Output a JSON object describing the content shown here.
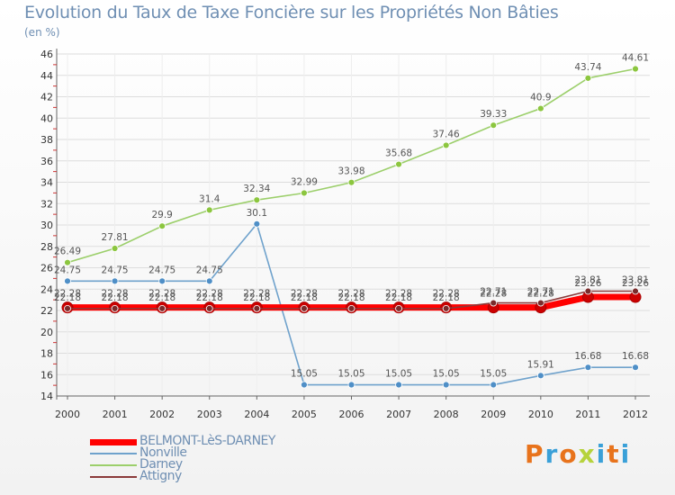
{
  "header": {
    "title": "Evolution du Taux de Taxe Foncière sur les Propriétés Non Bâties",
    "unit": "(en %)"
  },
  "logo": {
    "text": "Proxiti",
    "colors": [
      "#e8731c",
      "#3aa0d8",
      "#e8731c",
      "#b6d33c",
      "#3aa0d8",
      "#e8731c",
      "#3aa0d8"
    ]
  },
  "chart_data": {
    "type": "line",
    "title": "Evolution du Taux de Taxe Foncière sur les Propriétés Non Bâties",
    "ylabel": "(en %)",
    "xlabel": "",
    "x": [
      "2000",
      "2001",
      "2002",
      "2003",
      "2004",
      "2005",
      "2006",
      "2007",
      "2008",
      "2009",
      "2010",
      "2011",
      "2012"
    ],
    "ylim": [
      14,
      46
    ],
    "yticks": [
      14,
      16,
      18,
      20,
      22,
      24,
      26,
      28,
      30,
      32,
      34,
      36,
      38,
      40,
      42,
      44,
      46
    ],
    "grid": "horizontal",
    "legend_position": "bottom-left",
    "series": [
      {
        "name": "BELMONT-LèS-DARNEY",
        "color": "#ff0000",
        "values": [
          22.28,
          22.28,
          22.28,
          22.28,
          22.28,
          22.28,
          22.28,
          22.28,
          22.28,
          22.28,
          22.28,
          23.26,
          23.26
        ],
        "labels": [
          "22.28",
          "22.28",
          "22.28",
          "22.28",
          "22.28",
          "22.28",
          "22.28",
          "22.28",
          "22.28",
          "22.28",
          "22.28",
          "23.26",
          "23.26"
        ]
      },
      {
        "name": "Nonville",
        "color": "#6fa2cc",
        "values": [
          24.75,
          24.75,
          24.75,
          24.75,
          30.1,
          15.05,
          15.05,
          15.05,
          15.05,
          15.05,
          15.91,
          16.68,
          16.68
        ],
        "labels": [
          "24.75",
          "24.75",
          "24.75",
          "24.75",
          "30.1",
          "15.05",
          "15.05",
          "15.05",
          "15.05",
          "15.05",
          "15.91",
          "16.68",
          "16.68"
        ]
      },
      {
        "name": "Darney",
        "color": "#9ccf6b",
        "values": [
          26.49,
          27.81,
          29.9,
          31.4,
          32.34,
          32.99,
          33.98,
          35.68,
          37.46,
          39.33,
          40.9,
          43.74,
          44.61
        ],
        "labels": [
          "26.49",
          "27.81",
          "29.9",
          "31.4",
          "32.34",
          "32.99",
          "33.98",
          "35.68",
          "37.46",
          "39.33",
          "40.9",
          "43.74",
          "44.61"
        ]
      },
      {
        "name": "Attigny",
        "color": "#8b3a3a",
        "values": [
          22.18,
          22.18,
          22.18,
          22.18,
          22.18,
          22.18,
          22.18,
          22.18,
          22.18,
          22.71,
          22.71,
          23.81,
          23.81
        ],
        "labels": [
          "22.18",
          "22.18",
          "22.18",
          "22.18",
          "22.18",
          "22.18",
          "22.18",
          "22.18",
          "22.18",
          "22.71",
          "22.71",
          "23.81",
          "23.81"
        ]
      }
    ]
  }
}
